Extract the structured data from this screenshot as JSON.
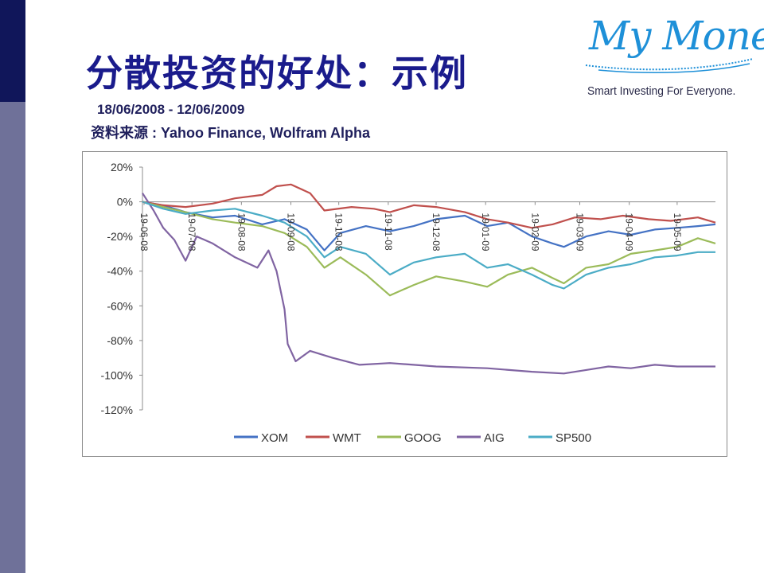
{
  "slide": {
    "title": "分散投资的好处：示例",
    "date_range": "18/06/2008 - 12/06/2009",
    "source": "资料来源 : Yahoo Finance, Wolfram Alpha"
  },
  "logo": {
    "text": "My Money",
    "tagline": "Smart Investing For Everyone.",
    "color": "#1e90d8"
  },
  "chart_data": {
    "type": "line",
    "title": "",
    "xlabel": "",
    "ylabel": "",
    "ylim": [
      -120,
      20
    ],
    "yticks": [
      20,
      0,
      -20,
      -40,
      -60,
      -80,
      -100,
      -120
    ],
    "ytick_labels": [
      "20%",
      "0%",
      "-20%",
      "-40%",
      "-60%",
      "-80%",
      "-100%",
      "-120%"
    ],
    "xlim": [
      "2008-06-18",
      "2009-06-12"
    ],
    "x_tick_dates": [
      "2008-06-19",
      "2008-07-19",
      "2008-08-19",
      "2008-09-19",
      "2008-10-19",
      "2008-11-19",
      "2008-12-19",
      "2009-01-19",
      "2009-02-19",
      "2009-03-19",
      "2009-04-19",
      "2009-05-19"
    ],
    "x_tick_labels": [
      "19-06-08",
      "19-07-08",
      "19-08-08",
      "19-09-08",
      "19-10-08",
      "19-11-08",
      "19-12-08",
      "19-01-09",
      "19-02-09",
      "19-03-09",
      "19-04-09",
      "19-05-09"
    ],
    "legend_position": "bottom",
    "grid": false,
    "series": [
      {
        "name": "XOM",
        "color": "#4472c4",
        "points": [
          [
            "2008-06-18",
            0
          ],
          [
            "2008-07-01",
            -2
          ],
          [
            "2008-07-15",
            -6
          ],
          [
            "2008-08-01",
            -9
          ],
          [
            "2008-08-15",
            -8
          ],
          [
            "2008-09-01",
            -13
          ],
          [
            "2008-09-15",
            -10
          ],
          [
            "2008-09-29",
            -16
          ],
          [
            "2008-10-10",
            -28
          ],
          [
            "2008-10-20",
            -18
          ],
          [
            "2008-11-05",
            -14
          ],
          [
            "2008-11-20",
            -17
          ],
          [
            "2008-12-05",
            -14
          ],
          [
            "2008-12-19",
            -10
          ],
          [
            "2009-01-06",
            -8
          ],
          [
            "2009-01-20",
            -14
          ],
          [
            "2009-02-02",
            -12
          ],
          [
            "2009-02-17",
            -20
          ],
          [
            "2009-03-02",
            -24
          ],
          [
            "2009-03-09",
            -26
          ],
          [
            "2009-03-23",
            -20
          ],
          [
            "2009-04-06",
            -17
          ],
          [
            "2009-04-20",
            -19
          ],
          [
            "2009-05-05",
            -16
          ],
          [
            "2009-05-19",
            -15
          ],
          [
            "2009-06-01",
            -14
          ],
          [
            "2009-06-12",
            -13
          ]
        ]
      },
      {
        "name": "WMT",
        "color": "#c0504d",
        "points": [
          [
            "2008-06-18",
            0
          ],
          [
            "2008-07-01",
            -2
          ],
          [
            "2008-07-15",
            -3
          ],
          [
            "2008-08-01",
            -1
          ],
          [
            "2008-08-15",
            2
          ],
          [
            "2008-09-01",
            4
          ],
          [
            "2008-09-10",
            9
          ],
          [
            "2008-09-19",
            10
          ],
          [
            "2008-10-01",
            5
          ],
          [
            "2008-10-10",
            -5
          ],
          [
            "2008-10-27",
            -3
          ],
          [
            "2008-11-10",
            -4
          ],
          [
            "2008-11-20",
            -6
          ],
          [
            "2008-12-05",
            -2
          ],
          [
            "2008-12-19",
            -3
          ],
          [
            "2009-01-06",
            -6
          ],
          [
            "2009-01-20",
            -10
          ],
          [
            "2009-02-02",
            -12
          ],
          [
            "2009-02-17",
            -15
          ],
          [
            "2009-03-02",
            -13
          ],
          [
            "2009-03-16",
            -9
          ],
          [
            "2009-04-01",
            -10
          ],
          [
            "2009-04-15",
            -8
          ],
          [
            "2009-05-01",
            -10
          ],
          [
            "2009-05-15",
            -11
          ],
          [
            "2009-06-01",
            -9
          ],
          [
            "2009-06-12",
            -12
          ]
        ]
      },
      {
        "name": "GOOG",
        "color": "#9bbb59",
        "points": [
          [
            "2008-06-18",
            0
          ],
          [
            "2008-07-01",
            -3
          ],
          [
            "2008-07-15",
            -6
          ],
          [
            "2008-08-01",
            -10
          ],
          [
            "2008-08-15",
            -12
          ],
          [
            "2008-09-01",
            -14
          ],
          [
            "2008-09-15",
            -18
          ],
          [
            "2008-09-29",
            -26
          ],
          [
            "2008-10-10",
            -38
          ],
          [
            "2008-10-20",
            -32
          ],
          [
            "2008-11-05",
            -42
          ],
          [
            "2008-11-20",
            -54
          ],
          [
            "2008-12-05",
            -48
          ],
          [
            "2008-12-19",
            -43
          ],
          [
            "2009-01-06",
            -46
          ],
          [
            "2009-01-20",
            -49
          ],
          [
            "2009-02-02",
            -42
          ],
          [
            "2009-02-17",
            -38
          ],
          [
            "2009-03-02",
            -44
          ],
          [
            "2009-03-09",
            -47
          ],
          [
            "2009-03-23",
            -38
          ],
          [
            "2009-04-06",
            -36
          ],
          [
            "2009-04-20",
            -30
          ],
          [
            "2009-05-05",
            -28
          ],
          [
            "2009-05-19",
            -26
          ],
          [
            "2009-06-01",
            -21
          ],
          [
            "2009-06-12",
            -24
          ]
        ]
      },
      {
        "name": "AIG",
        "color": "#8064a2",
        "points": [
          [
            "2008-06-18",
            5
          ],
          [
            "2008-06-25",
            -5
          ],
          [
            "2008-07-01",
            -15
          ],
          [
            "2008-07-08",
            -22
          ],
          [
            "2008-07-15",
            -34
          ],
          [
            "2008-07-22",
            -20
          ],
          [
            "2008-08-01",
            -24
          ],
          [
            "2008-08-15",
            -32
          ],
          [
            "2008-08-29",
            -38
          ],
          [
            "2008-09-05",
            -28
          ],
          [
            "2008-09-10",
            -40
          ],
          [
            "2008-09-15",
            -62
          ],
          [
            "2008-09-17",
            -82
          ],
          [
            "2008-09-22",
            -92
          ],
          [
            "2008-10-01",
            -86
          ],
          [
            "2008-10-15",
            -90
          ],
          [
            "2008-11-01",
            -94
          ],
          [
            "2008-11-20",
            -93
          ],
          [
            "2008-12-19",
            -95
          ],
          [
            "2009-01-20",
            -96
          ],
          [
            "2009-02-17",
            -98
          ],
          [
            "2009-03-09",
            -99
          ],
          [
            "2009-03-23",
            -97
          ],
          [
            "2009-04-06",
            -95
          ],
          [
            "2009-04-20",
            -96
          ],
          [
            "2009-05-05",
            -94
          ],
          [
            "2009-05-19",
            -95
          ],
          [
            "2009-06-12",
            -95
          ]
        ]
      },
      {
        "name": "SP500",
        "color": "#4bacc6",
        "points": [
          [
            "2008-06-18",
            0
          ],
          [
            "2008-07-01",
            -4
          ],
          [
            "2008-07-15",
            -7
          ],
          [
            "2008-08-01",
            -5
          ],
          [
            "2008-08-15",
            -4
          ],
          [
            "2008-09-01",
            -8
          ],
          [
            "2008-09-15",
            -12
          ],
          [
            "2008-09-29",
            -20
          ],
          [
            "2008-10-10",
            -32
          ],
          [
            "2008-10-20",
            -26
          ],
          [
            "2008-11-05",
            -30
          ],
          [
            "2008-11-20",
            -42
          ],
          [
            "2008-12-05",
            -35
          ],
          [
            "2008-12-19",
            -32
          ],
          [
            "2009-01-06",
            -30
          ],
          [
            "2009-01-20",
            -38
          ],
          [
            "2009-02-02",
            -36
          ],
          [
            "2009-02-17",
            -42
          ],
          [
            "2009-03-02",
            -48
          ],
          [
            "2009-03-09",
            -50
          ],
          [
            "2009-03-23",
            -42
          ],
          [
            "2009-04-06",
            -38
          ],
          [
            "2009-04-20",
            -36
          ],
          [
            "2009-05-05",
            -32
          ],
          [
            "2009-05-19",
            -31
          ],
          [
            "2009-06-01",
            -29
          ],
          [
            "2009-06-12",
            -29
          ]
        ]
      }
    ]
  }
}
